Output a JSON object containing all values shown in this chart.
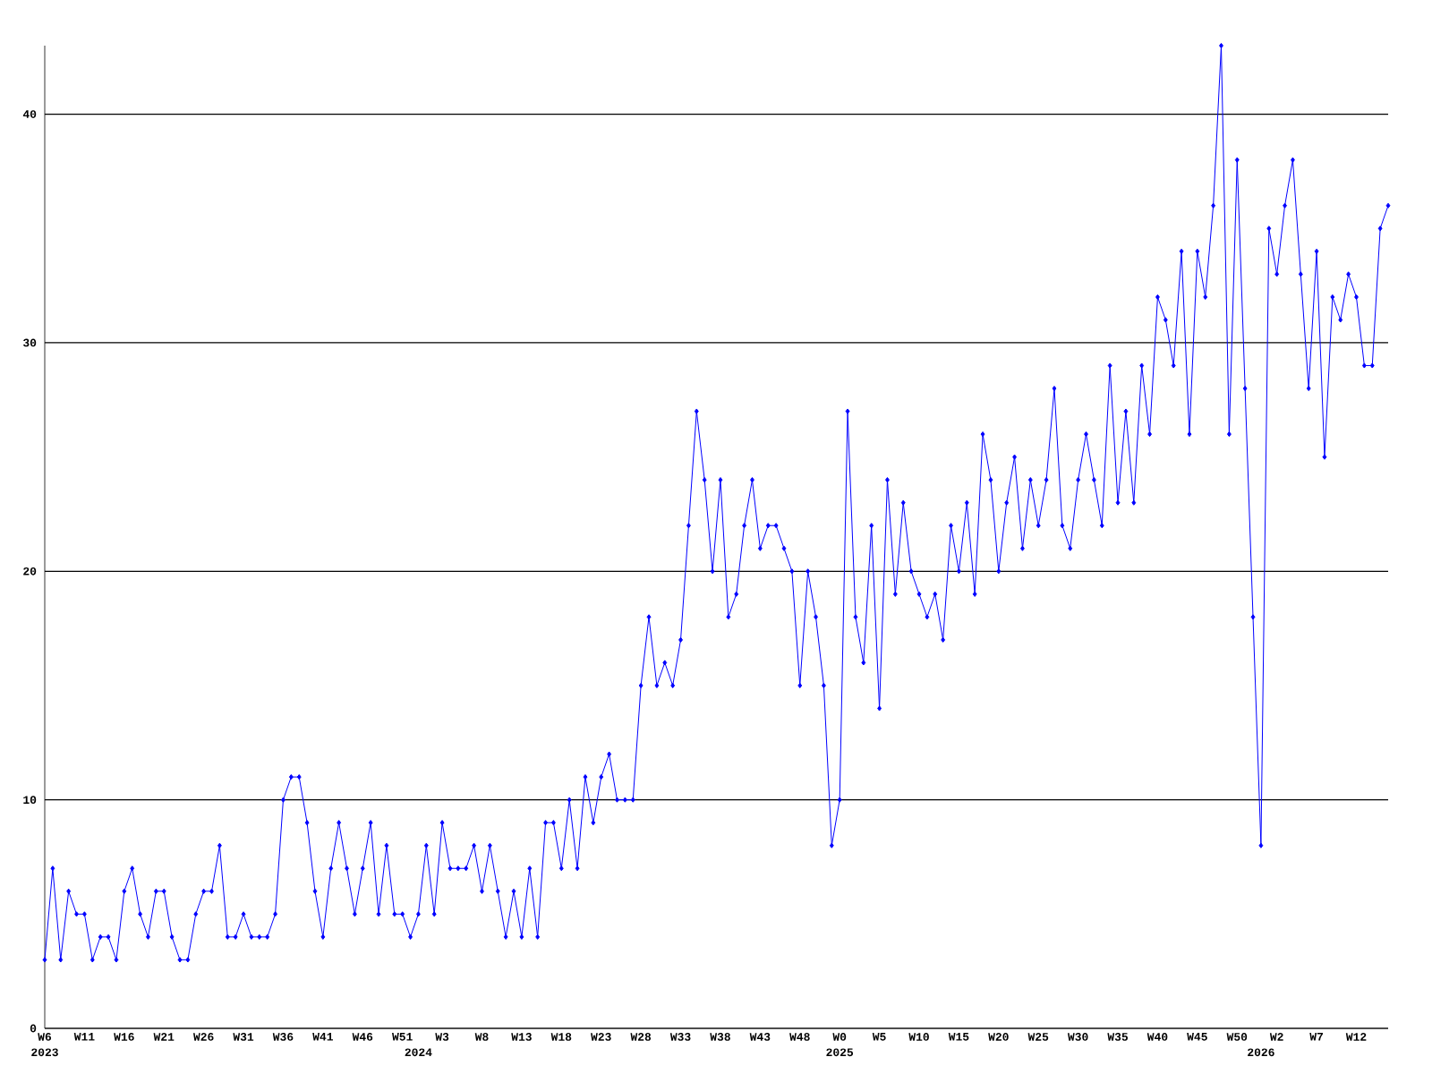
{
  "chart_data": {
    "type": "line",
    "categories": [
      "W6",
      null,
      null,
      null,
      null,
      "W11",
      null,
      null,
      null,
      null,
      "W16",
      null,
      null,
      null,
      null,
      "W21",
      null,
      null,
      null,
      null,
      "W26",
      null,
      null,
      null,
      null,
      "W31",
      null,
      null,
      null,
      null,
      "W36",
      null,
      null,
      null,
      null,
      "W41",
      null,
      null,
      null,
      null,
      "W46",
      null,
      null,
      null,
      null,
      "W51",
      null,
      null,
      null,
      null,
      "W3",
      null,
      null,
      null,
      null,
      "W8",
      null,
      null,
      null,
      null,
      "W13",
      null,
      null,
      null,
      null,
      "W18",
      null,
      null,
      null,
      null,
      "W23",
      null,
      null,
      null,
      null,
      "W28",
      null,
      null,
      null,
      null,
      "W33",
      null,
      null,
      null,
      null,
      "W38",
      null,
      null,
      null,
      null,
      "W43",
      null,
      null,
      null,
      null,
      "W48",
      null,
      null,
      null,
      null,
      "W0",
      null,
      null,
      null,
      null,
      "W5",
      null,
      null,
      null,
      null,
      "W10",
      null,
      null,
      null,
      null,
      "W15",
      null,
      null,
      null,
      null,
      "W20",
      null,
      null,
      null,
      null,
      "W25",
      null,
      null,
      null,
      null,
      "W30",
      null,
      null,
      null,
      null,
      "W35",
      null,
      null,
      null,
      null,
      "W40",
      null,
      null,
      null,
      null,
      "W45",
      null,
      null,
      null,
      null,
      "W50",
      null,
      null,
      null,
      null,
      "W2",
      null,
      null,
      null,
      null,
      "W7",
      null,
      null,
      null,
      null,
      "W12",
      null,
      null,
      null,
      null
    ],
    "values": [
      3,
      7,
      3,
      6,
      5,
      5,
      3,
      4,
      4,
      3,
      6,
      7,
      5,
      4,
      6,
      6,
      4,
      3,
      3,
      5,
      6,
      6,
      8,
      4,
      4,
      5,
      4,
      4,
      4,
      5,
      10,
      11,
      11,
      9,
      6,
      4,
      7,
      9,
      7,
      5,
      7,
      9,
      5,
      8,
      5,
      5,
      4,
      5,
      8,
      5,
      9,
      7,
      7,
      7,
      8,
      6,
      8,
      6,
      4,
      6,
      4,
      7,
      4,
      9,
      9,
      7,
      10,
      7,
      11,
      9,
      11,
      12,
      10,
      10,
      10,
      15,
      18,
      15,
      16,
      15,
      17,
      22,
      27,
      24,
      20,
      24,
      18,
      19,
      22,
      24,
      21,
      22,
      22,
      21,
      20,
      15,
      20,
      18,
      15,
      8,
      10,
      27,
      18,
      16,
      22,
      14,
      24,
      19,
      23,
      20,
      19,
      18,
      19,
      17,
      22,
      20,
      23,
      19,
      26,
      24,
      20,
      23,
      25,
      21,
      24,
      22,
      24,
      28,
      22,
      21,
      24,
      26,
      24,
      22,
      29,
      23,
      27,
      23,
      29,
      26,
      32,
      31,
      29,
      34,
      26,
      34,
      32,
      36,
      43,
      26,
      38,
      28,
      18,
      8,
      35,
      33,
      36,
      38,
      33,
      28,
      34,
      25,
      32,
      31,
      33,
      32,
      29,
      29,
      35,
      36
    ],
    "color": "#0000ff",
    "ylim": [
      0,
      43
    ],
    "yticks": [
      0,
      10,
      20,
      30,
      40
    ],
    "grid": "y",
    "marker": "diamond",
    "annotations": [
      "2023",
      "2024",
      "2025",
      "2026"
    ]
  }
}
